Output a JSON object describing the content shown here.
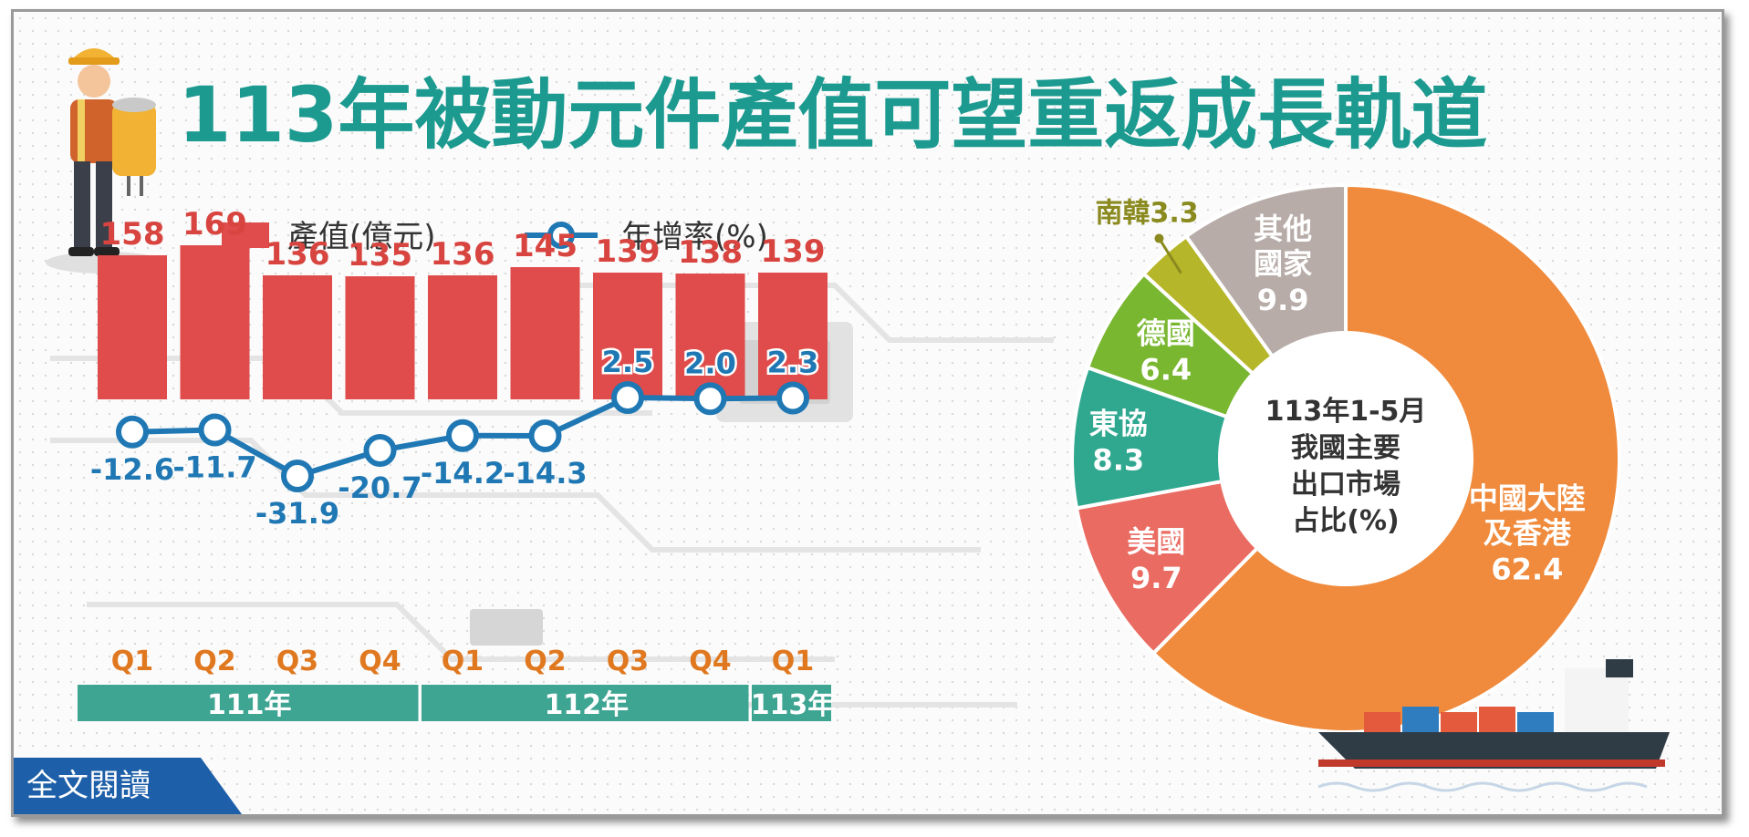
{
  "title": "113年被動元件產值可望重返成長軌道",
  "legend": {
    "bar_label": "產值(億元)",
    "line_label": "年增率(%)"
  },
  "colors": {
    "title": "#1c9a90",
    "bar": "#e04b4b",
    "bar_label": "#d8443f",
    "line": "#1f78b4",
    "rate_label": "#1f78b4",
    "quarter_label": "#e07820",
    "year_band": "#3fa593",
    "pie_china": "#f08a3c",
    "pie_usa": "#ea6b62",
    "pie_asean": "#30a890",
    "pie_germany": "#7ab731",
    "pie_korea": "#b6b62a",
    "pie_other": "#b7aca8",
    "korea_label": "#8a8a1f"
  },
  "chart_data": [
    {
      "type": "bar",
      "categories": [
        "Q1",
        "Q2",
        "Q3",
        "Q4",
        "Q1",
        "Q2",
        "Q3",
        "Q4",
        "Q1"
      ],
      "category_groups": [
        {
          "label": "111年",
          "span": 4
        },
        {
          "label": "112年",
          "span": 4
        },
        {
          "label": "113年",
          "span": 1
        }
      ],
      "series": [
        {
          "name": "產值(億元)",
          "type": "bar",
          "values": [
            158,
            169,
            136,
            135,
            136,
            145,
            139,
            138,
            139
          ]
        },
        {
          "name": "年增率(%)",
          "type": "line",
          "values": [
            -12.6,
            -11.7,
            -31.9,
            -20.7,
            -14.2,
            -14.3,
            2.5,
            2.0,
            2.3
          ]
        }
      ],
      "value_labels": [
        "158",
        "169",
        "136",
        "135",
        "136",
        "145",
        "139",
        "138",
        "139"
      ],
      "rate_labels": [
        "-12.6",
        "-11.7",
        "-31.9",
        "-20.7",
        "-14.2",
        "-14.3",
        "2.5",
        "2.0",
        "2.3"
      ],
      "legend_position": "top",
      "grid": false
    },
    {
      "type": "pie",
      "center_label": [
        "113年1-5月",
        "我國主要",
        "出口市場",
        "占比(%)"
      ],
      "slices": [
        {
          "name": "中國大陸及香港",
          "label_lines": [
            "中國大陸",
            "及香港"
          ],
          "value": 62.4,
          "value_label": "62.4",
          "color_key": "pie_china"
        },
        {
          "name": "美國",
          "label_lines": [
            "美國"
          ],
          "value": 9.7,
          "value_label": "9.7",
          "color_key": "pie_usa"
        },
        {
          "name": "東協",
          "label_lines": [
            "東協"
          ],
          "value": 8.3,
          "value_label": "8.3",
          "color_key": "pie_asean"
        },
        {
          "name": "德國",
          "label_lines": [
            "德國"
          ],
          "value": 6.4,
          "value_label": "6.4",
          "color_key": "pie_germany"
        },
        {
          "name": "南韓",
          "label_lines": [
            "南韓"
          ],
          "value": 3.3,
          "value_label": "3.3",
          "color_key": "pie_korea"
        },
        {
          "name": "其他國家",
          "label_lines": [
            "其他",
            "國家"
          ],
          "value": 9.9,
          "value_label": "9.9",
          "color_key": "pie_other"
        }
      ]
    }
  ],
  "button": {
    "read_full": "全文閱讀"
  },
  "icons": [
    "worker-with-capacitor-icon",
    "cargo-ship-icon",
    "world-map-icon",
    "circuit-chip-icon"
  ]
}
